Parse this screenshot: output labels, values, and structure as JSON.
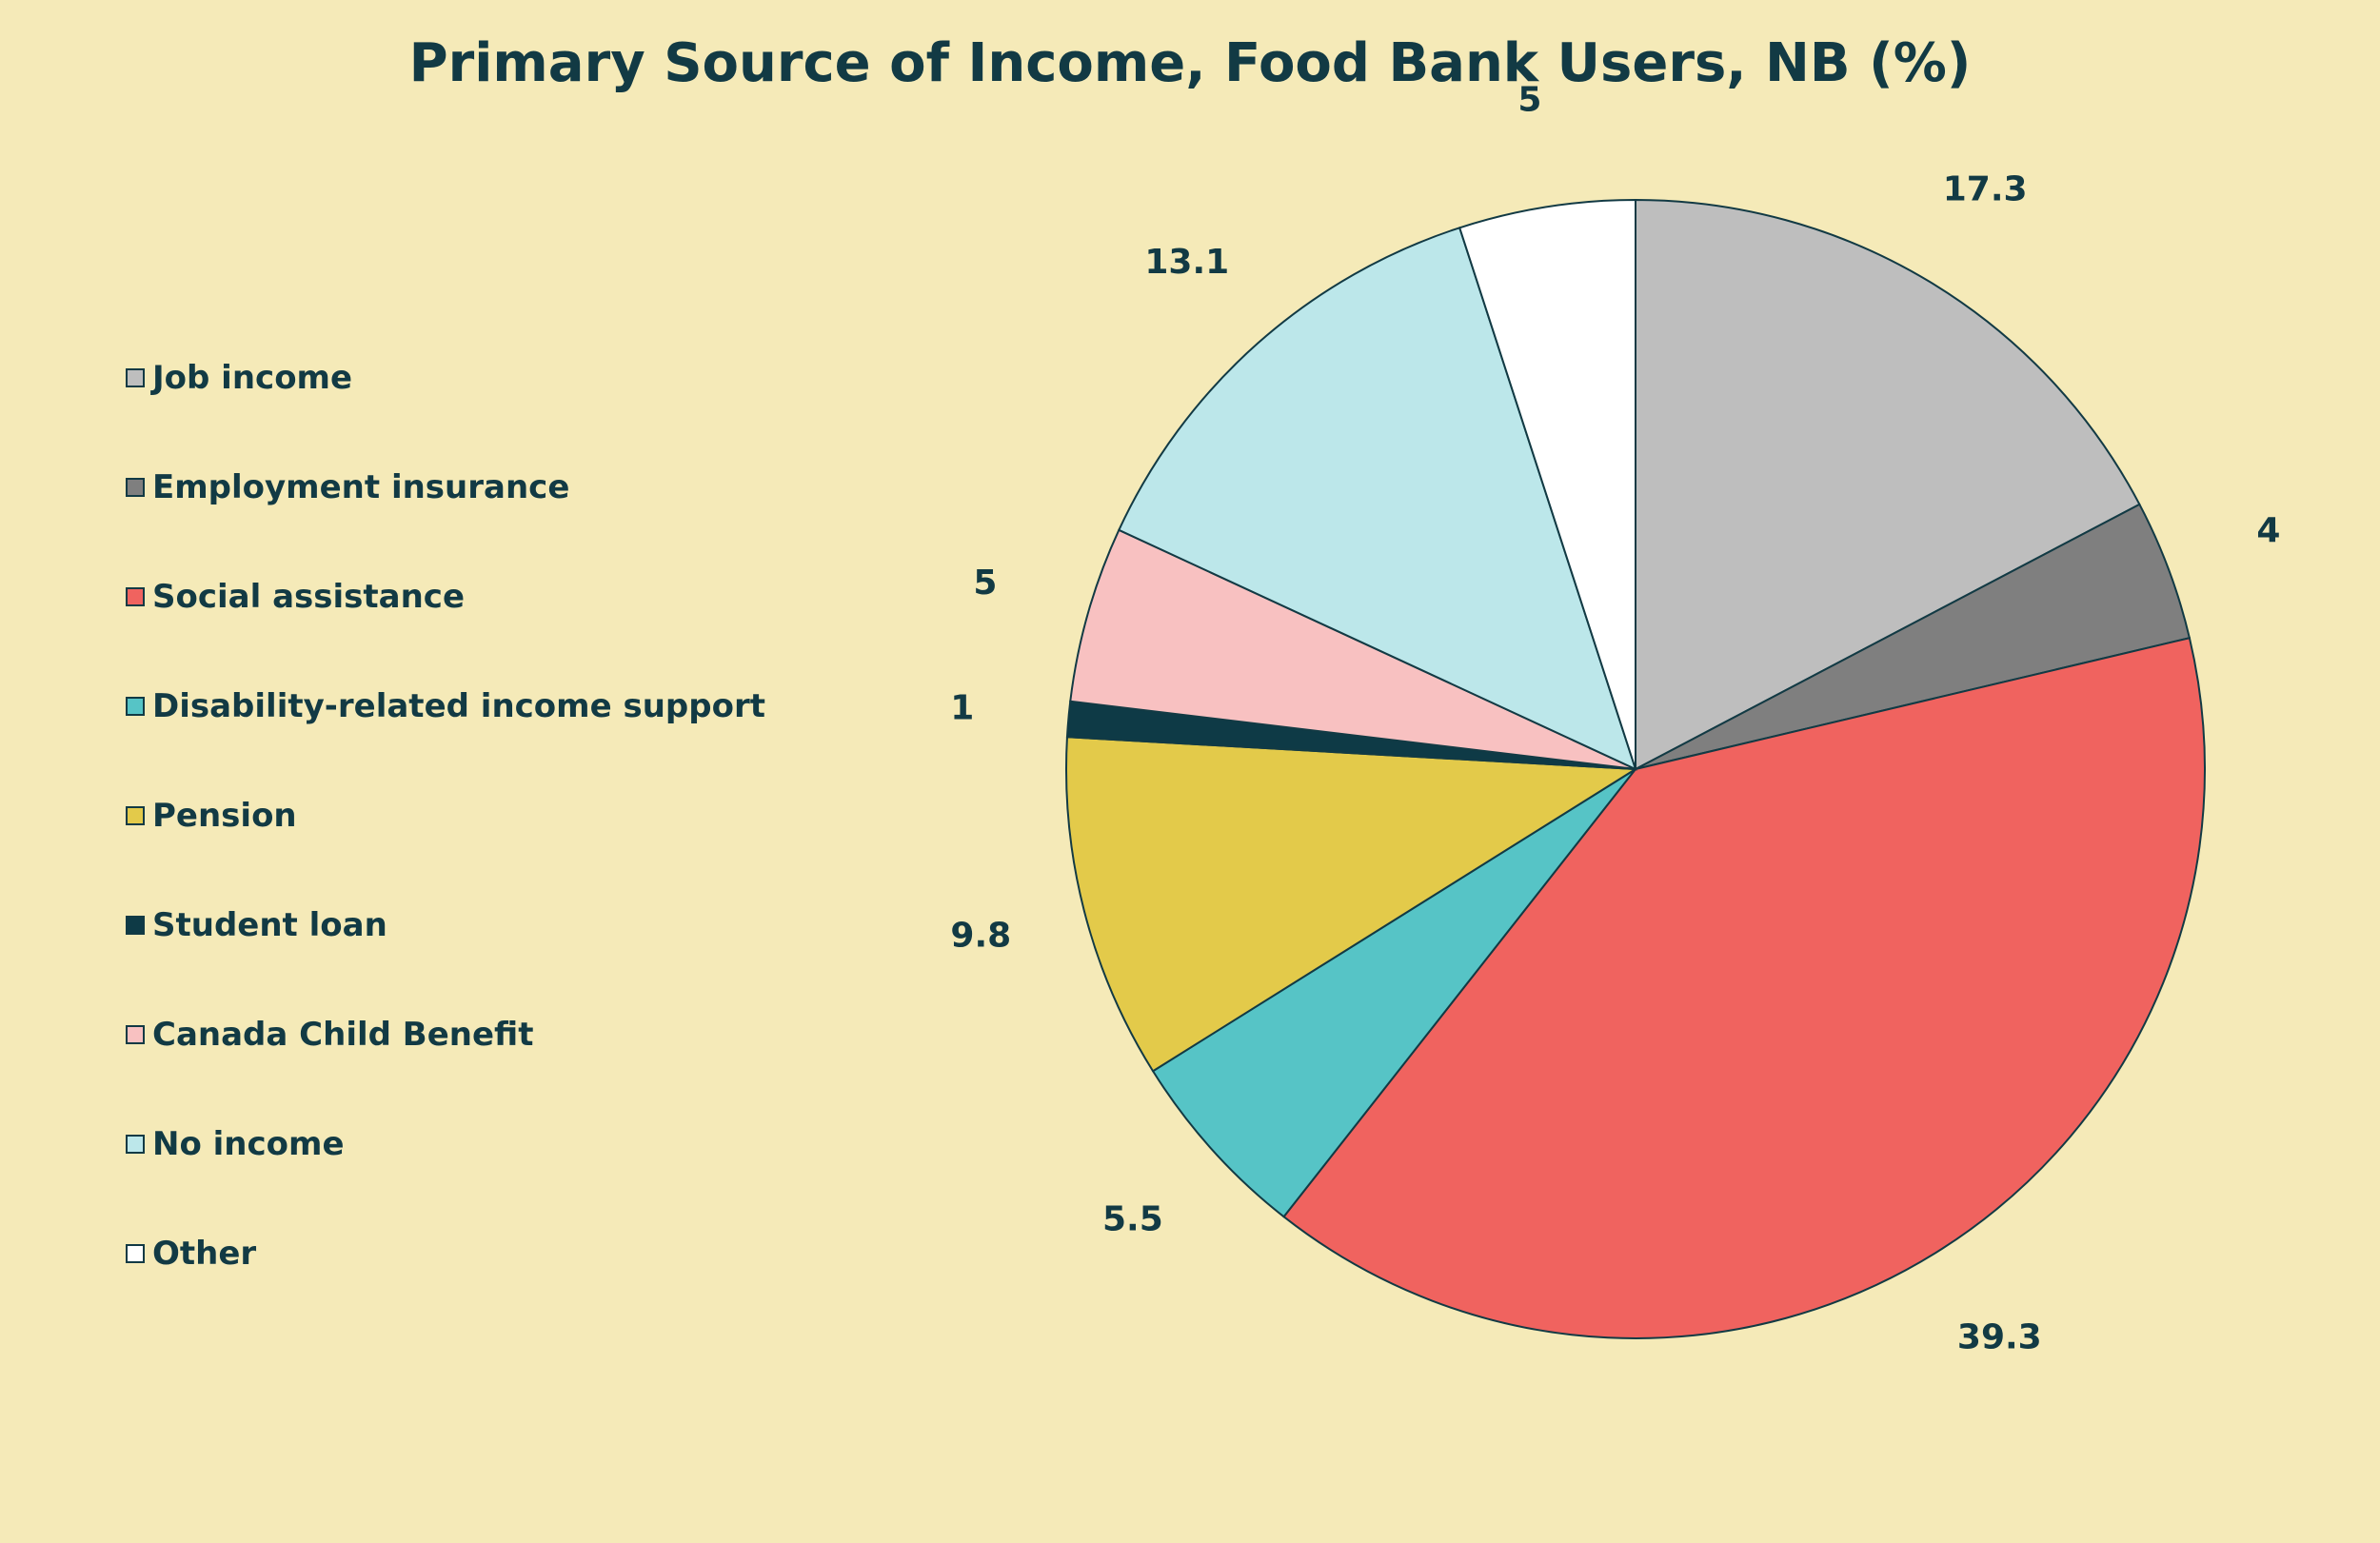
{
  "chart_data": {
    "type": "pie",
    "title": "Primary Source of Income, Food Bank Users, NB (%)",
    "legend_position": "left",
    "slices": [
      {
        "name": "Job income",
        "value": 17.3,
        "label": "17.3",
        "color": "#bebebe"
      },
      {
        "name": "Employment insurance",
        "value": 4,
        "label": "4",
        "color": "#7f7f7f"
      },
      {
        "name": "Social assistance",
        "value": 39.3,
        "label": "39.3",
        "color": "#f0635f"
      },
      {
        "name": "Disability-related income support",
        "value": 5.5,
        "label": "5.5",
        "color": "#56c4c6"
      },
      {
        "name": "Pension",
        "value": 9.8,
        "label": "9.8",
        "color": "#e3ca4a"
      },
      {
        "name": "Student loan",
        "value": 1,
        "label": "1",
        "color": "#0e3a46"
      },
      {
        "name": "Canada Child Benefit",
        "value": 5,
        "label": "5",
        "color": "#f8c1c1"
      },
      {
        "name": "No income",
        "value": 13.1,
        "label": "13.1",
        "color": "#bce7ea"
      },
      {
        "name": "Other",
        "value": 5,
        "label": "5",
        "color": "#ffffff"
      }
    ]
  }
}
